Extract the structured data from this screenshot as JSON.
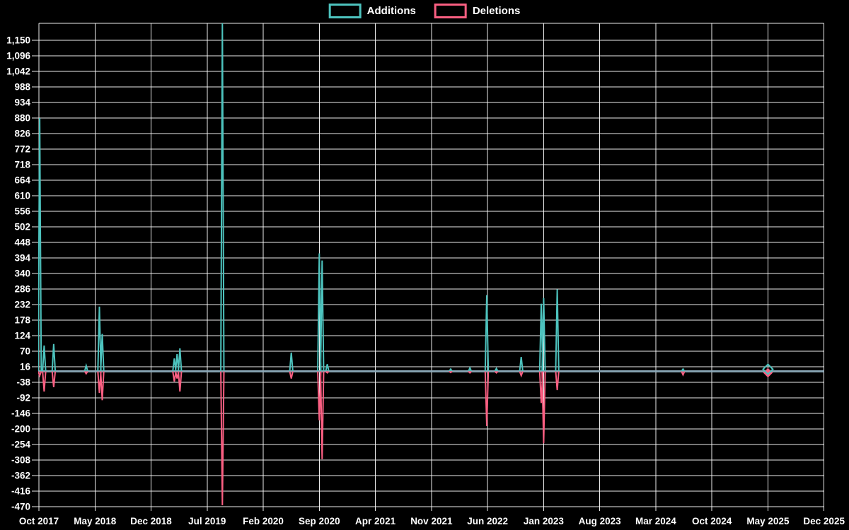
{
  "chart_data": {
    "type": "line",
    "title": "",
    "background_color": "#000000",
    "grid": true,
    "grid_color": "#ffffff",
    "axis_text_color": "#ffffff",
    "baseline_color": "#8CAAB9",
    "legend_position": "top-center",
    "series": [
      {
        "name": "Additions",
        "color": "#4DC3BE"
      },
      {
        "name": "Deletions",
        "color": "#FA5F82"
      }
    ],
    "x_axis": {
      "tick_labels": [
        "Oct 2017",
        "May 2018",
        "Dec 2018",
        "Jul 2019",
        "Feb 2020",
        "Sep 2020",
        "Apr 2021",
        "Nov 2021",
        "Jun 2022",
        "Jan 2023",
        "Aug 2023",
        "Mar 2024",
        "Oct 2024",
        "May 2025",
        "Dec 2025"
      ],
      "months_per_tick": 7,
      "start": "Oct 2017",
      "end": "Dec 2025"
    },
    "y_axis": {
      "tick_labels": [
        "1,150",
        "1,096",
        "1,042",
        "988",
        "934",
        "880",
        "826",
        "772",
        "718",
        "664",
        "610",
        "556",
        "502",
        "448",
        "394",
        "340",
        "286",
        "232",
        "178",
        "124",
        "70",
        "16",
        "-38",
        "-92",
        "-146",
        "-200",
        "-254",
        "-308",
        "-362",
        "-416",
        "-470"
      ],
      "max": 1150,
      "min": -470,
      "step": 54
    },
    "points_format": "x_months_from_oct_2017 is the horizontal offset in months; additions positive, deletions negative; all other weeks are ~0 for both series",
    "points": [
      {
        "x_months_from_oct_2017": 0.1,
        "date_approx": "Oct 2017",
        "additions": 880,
        "deletions": -15
      },
      {
        "x_months_from_oct_2017": 0.65,
        "date_approx": "Nov 2017",
        "additions": 90,
        "deletions": -70
      },
      {
        "x_months_from_oct_2017": 1.85,
        "date_approx": "Dec 2017",
        "additions": 95,
        "deletions": -55
      },
      {
        "x_months_from_oct_2017": 5.9,
        "date_approx": "Apr 2018",
        "additions": 20,
        "deletions": -8
      },
      {
        "x_months_from_oct_2017": 7.55,
        "date_approx": "Jun 2018",
        "additions": 225,
        "deletions": -75
      },
      {
        "x_months_from_oct_2017": 7.9,
        "date_approx": "Jun 2018",
        "additions": 130,
        "deletions": -100
      },
      {
        "x_months_from_oct_2017": 16.9,
        "date_approx": "Feb 2019",
        "additions": 45,
        "deletions": -35
      },
      {
        "x_months_from_oct_2017": 17.25,
        "date_approx": "Mar 2019",
        "additions": 60,
        "deletions": -25
      },
      {
        "x_months_from_oct_2017": 17.6,
        "date_approx": "Mar 2019",
        "additions": 80,
        "deletions": -70
      },
      {
        "x_months_from_oct_2017": 22.9,
        "date_approx": "Sep 2019",
        "additions": 1210,
        "deletions": -465,
        "clipped_at_top": true
      },
      {
        "x_months_from_oct_2017": 31.5,
        "date_approx": "May 2020",
        "additions": 65,
        "deletions": -25
      },
      {
        "x_months_from_oct_2017": 35.0,
        "date_approx": "Sep 2020",
        "additions": 410,
        "deletions": -170
      },
      {
        "x_months_from_oct_2017": 35.35,
        "date_approx": "Sep 2020",
        "additions": 385,
        "deletions": -305
      },
      {
        "x_months_from_oct_2017": 36.0,
        "date_approx": "Oct 2020",
        "additions": 25,
        "deletions": -5
      },
      {
        "x_months_from_oct_2017": 51.4,
        "date_approx": "Jan 2022",
        "additions": 8,
        "deletions": -4
      },
      {
        "x_months_from_oct_2017": 53.8,
        "date_approx": "Mar 2022",
        "additions": 12,
        "deletions": -5
      },
      {
        "x_months_from_oct_2017": 55.9,
        "date_approx": "Jun 2022",
        "additions": 265,
        "deletions": -190
      },
      {
        "x_months_from_oct_2017": 57.1,
        "date_approx": "Jul 2022",
        "additions": 10,
        "deletions": -5
      },
      {
        "x_months_from_oct_2017": 60.2,
        "date_approx": "Oct 2022",
        "additions": 50,
        "deletions": -15
      },
      {
        "x_months_from_oct_2017": 62.7,
        "date_approx": "Dec 2022",
        "additions": 235,
        "deletions": -110
      },
      {
        "x_months_from_oct_2017": 63.0,
        "date_approx": "Jan 2023",
        "additions": 255,
        "deletions": -250
      },
      {
        "x_months_from_oct_2017": 64.7,
        "date_approx": "Feb 2023",
        "additions": 285,
        "deletions": -65
      },
      {
        "x_months_from_oct_2017": 80.4,
        "date_approx": "Jun 2024",
        "additions": 8,
        "deletions": -12
      },
      {
        "x_months_from_oct_2017": 91.0,
        "date_approx": "May 2025",
        "additions": 6,
        "deletions": -8,
        "marker": "diamond"
      }
    ],
    "note": "Sep 2019 additions spike is clipped at the top of the plot (value exceeds 1,150). Flat portions of both series sit at ~0 and render as a single gray-blue baseline."
  }
}
